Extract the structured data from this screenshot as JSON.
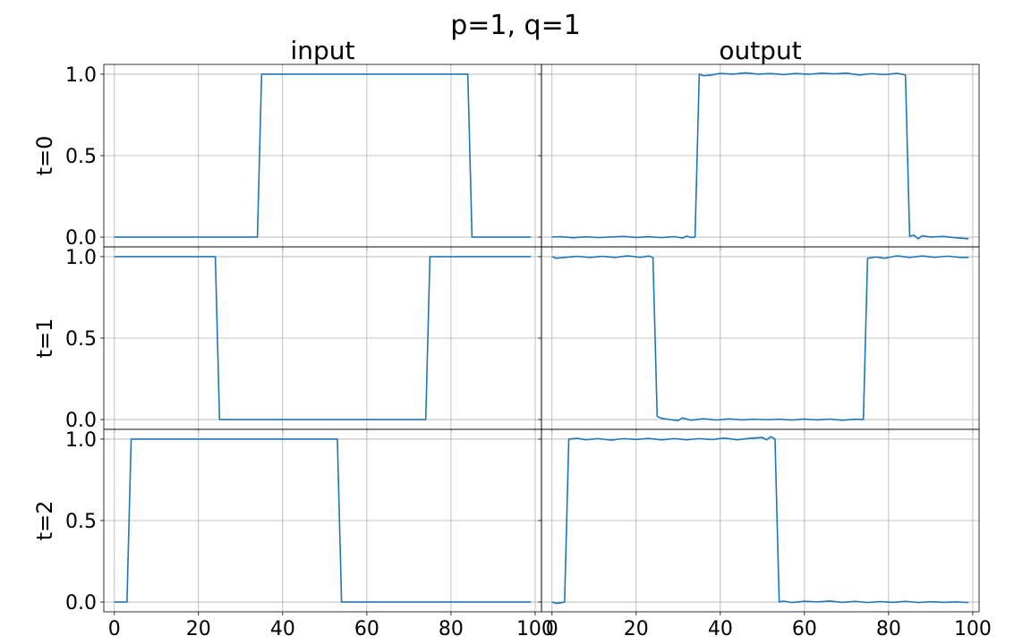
{
  "suptitle": "p=1, q=1",
  "colors": {
    "series": "#1f77b4",
    "grid": "#b0b0b0",
    "axes": "#000000"
  },
  "chart_data": {
    "type": "line",
    "grid": true,
    "layout": "3 rows x 2 columns, shared axes",
    "column_titles": [
      "input",
      "output"
    ],
    "row_labels": [
      "t=0",
      "t=1",
      "t=2"
    ],
    "xlim": [
      -2.5,
      101.5
    ],
    "ylim": [
      -0.06,
      1.06
    ],
    "xticks": [
      0,
      20,
      40,
      60,
      80,
      100
    ],
    "xtick_labels": [
      "0",
      "20",
      "40",
      "60",
      "80",
      "100"
    ],
    "yticks": [
      0.0,
      0.5,
      1.0
    ],
    "ytick_labels": [
      "0.0",
      "0.5",
      "1.0"
    ],
    "x_range": [
      0,
      99
    ],
    "panels": [
      {
        "name": "input-t0",
        "points": [
          [
            0,
            0
          ],
          [
            34,
            0
          ],
          [
            35,
            1
          ],
          [
            84,
            1
          ],
          [
            85,
            0
          ],
          [
            99,
            0
          ]
        ]
      },
      {
        "name": "output-t0",
        "points": [
          [
            0,
            0.0
          ],
          [
            2,
            0.003
          ],
          [
            5,
            -0.004
          ],
          [
            8,
            0.002
          ],
          [
            11,
            -0.003
          ],
          [
            14,
            0.001
          ],
          [
            17,
            0.004
          ],
          [
            20,
            -0.002
          ],
          [
            23,
            0.002
          ],
          [
            26,
            -0.003
          ],
          [
            29,
            0.003
          ],
          [
            31,
            -0.006
          ],
          [
            32,
            0.006
          ],
          [
            33,
            -0.002
          ],
          [
            34,
            0.0
          ],
          [
            35,
            1.0
          ],
          [
            36,
            0.99
          ],
          [
            38,
            0.995
          ],
          [
            40,
            1.005
          ],
          [
            43,
            1.0
          ],
          [
            46,
            1.008
          ],
          [
            49,
            1.0
          ],
          [
            52,
            1.004
          ],
          [
            55,
            0.997
          ],
          [
            58,
            1.004
          ],
          [
            61,
            0.999
          ],
          [
            64,
            1.006
          ],
          [
            67,
            1.002
          ],
          [
            70,
            1.006
          ],
          [
            73,
            0.995
          ],
          [
            76,
            1.003
          ],
          [
            79,
            0.997
          ],
          [
            82,
            1.005
          ],
          [
            84,
            0.995
          ],
          [
            85,
            0.005
          ],
          [
            86,
            0.012
          ],
          [
            87,
            -0.01
          ],
          [
            88,
            0.008
          ],
          [
            90,
            0.0
          ],
          [
            93,
            0.004
          ],
          [
            96,
            -0.004
          ],
          [
            99,
            -0.01
          ]
        ]
      },
      {
        "name": "input-t1",
        "points": [
          [
            0,
            1
          ],
          [
            24,
            1
          ],
          [
            25,
            0
          ],
          [
            74,
            0
          ],
          [
            75,
            1
          ],
          [
            99,
            1
          ]
        ]
      },
      {
        "name": "output-t1",
        "points": [
          [
            0,
            1.0
          ],
          [
            1,
            0.99
          ],
          [
            3,
            0.995
          ],
          [
            6,
            1.002
          ],
          [
            9,
            0.995
          ],
          [
            12,
            1.002
          ],
          [
            15,
            0.995
          ],
          [
            18,
            1.005
          ],
          [
            21,
            0.996
          ],
          [
            23,
            1.004
          ],
          [
            24,
            0.995
          ],
          [
            25,
            0.02
          ],
          [
            26,
            0.008
          ],
          [
            28,
            0.0
          ],
          [
            30,
            -0.006
          ],
          [
            31,
            0.01
          ],
          [
            33,
            -0.004
          ],
          [
            36,
            0.005
          ],
          [
            39,
            -0.003
          ],
          [
            42,
            0.004
          ],
          [
            45,
            -0.002
          ],
          [
            48,
            0.002
          ],
          [
            51,
            -0.001
          ],
          [
            54,
            0.002
          ],
          [
            57,
            -0.003
          ],
          [
            60,
            0.003
          ],
          [
            63,
            -0.002
          ],
          [
            66,
            0.003
          ],
          [
            69,
            -0.004
          ],
          [
            72,
            0.002
          ],
          [
            74,
            0.0
          ],
          [
            75,
            0.99
          ],
          [
            77,
            0.998
          ],
          [
            79,
            0.99
          ],
          [
            82,
            1.005
          ],
          [
            85,
            0.995
          ],
          [
            88,
            1.004
          ],
          [
            91,
            0.996
          ],
          [
            94,
            1.003
          ],
          [
            97,
            0.995
          ],
          [
            99,
            0.995
          ]
        ]
      },
      {
        "name": "input-t2",
        "points": [
          [
            0,
            0
          ],
          [
            3,
            0
          ],
          [
            4,
            1
          ],
          [
            53,
            1
          ],
          [
            54,
            0
          ],
          [
            99,
            0
          ]
        ]
      },
      {
        "name": "output-t2",
        "points": [
          [
            0,
            0.0
          ],
          [
            1,
            -0.008
          ],
          [
            2,
            -0.005
          ],
          [
            3,
            0.0
          ],
          [
            4,
            1.0
          ],
          [
            6,
            1.005
          ],
          [
            8,
            0.996
          ],
          [
            11,
            1.003
          ],
          [
            14,
            0.994
          ],
          [
            17,
            1.003
          ],
          [
            20,
            0.998
          ],
          [
            23,
            1.004
          ],
          [
            26,
            0.995
          ],
          [
            29,
            1.003
          ],
          [
            32,
            0.996
          ],
          [
            35,
            1.003
          ],
          [
            38,
            0.997
          ],
          [
            41,
            1.006
          ],
          [
            44,
            0.996
          ],
          [
            47,
            1.005
          ],
          [
            50,
            1.01
          ],
          [
            51,
            0.996
          ],
          [
            52,
            1.015
          ],
          [
            53,
            1.0
          ],
          [
            54,
            0.0
          ],
          [
            55,
            0.006
          ],
          [
            57,
            -0.003
          ],
          [
            60,
            0.005
          ],
          [
            63,
            0.001
          ],
          [
            66,
            0.006
          ],
          [
            69,
            -0.002
          ],
          [
            72,
            0.004
          ],
          [
            75,
            -0.003
          ],
          [
            78,
            0.003
          ],
          [
            81,
            -0.002
          ],
          [
            84,
            0.004
          ],
          [
            87,
            -0.003
          ],
          [
            90,
            0.002
          ],
          [
            93,
            -0.002
          ],
          [
            96,
            0.001
          ],
          [
            99,
            -0.003
          ]
        ]
      }
    ]
  }
}
